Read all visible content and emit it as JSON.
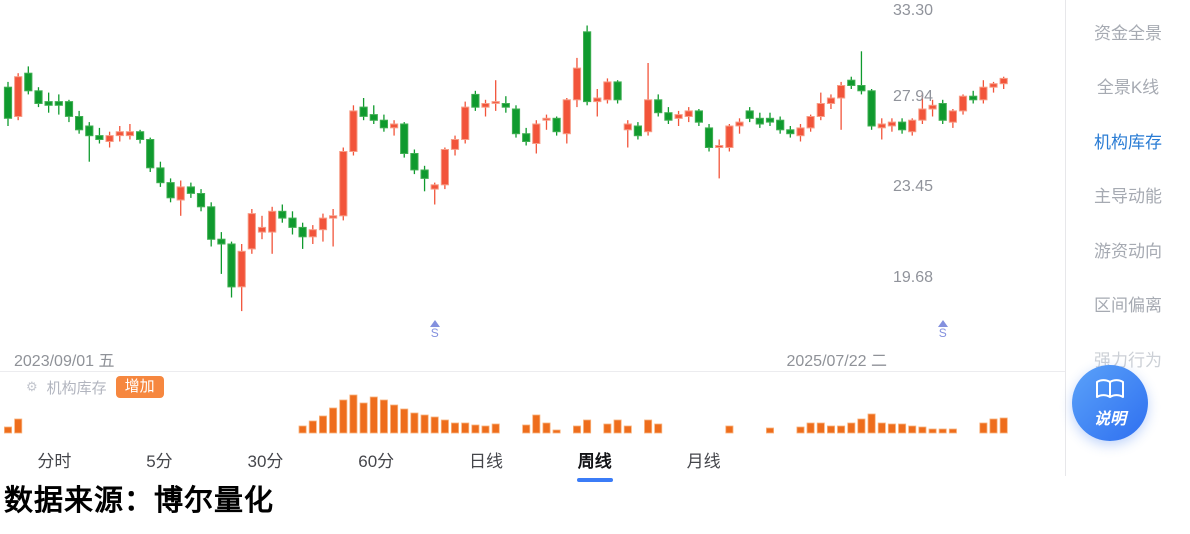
{
  "chart": {
    "price_labels": [
      "33.30",
      "27.94",
      "23.45",
      "19.68"
    ],
    "date_start": "2023/09/01 五",
    "date_end": "2025/07/22 二",
    "signal_markers": [
      {
        "label": "S",
        "index": 42
      },
      {
        "label": "S",
        "index": 92
      }
    ]
  },
  "chart_data": {
    "type": "candlestick",
    "timeframe": "weekly",
    "x_range": [
      "2023/09/01",
      "2025/07/22"
    ],
    "y_axis": {
      "scale": "log",
      "labels": [
        33.3,
        27.94,
        23.45,
        19.68
      ]
    },
    "colors": {
      "up": "#F2543A",
      "up_border": "#F79C86",
      "down": "#0F9A2E",
      "down_border": "#3FAE52",
      "inventory_bar": "#EE6D1C",
      "inventory_bar_border": "#F9B27C"
    },
    "candles_ohlc": [
      [
        28.6,
        28.9,
        26.5,
        26.9
      ],
      [
        27.0,
        29.4,
        26.8,
        29.2
      ],
      [
        29.4,
        29.8,
        28.2,
        28.4
      ],
      [
        28.4,
        28.6,
        27.5,
        27.7
      ],
      [
        27.8,
        28.3,
        27.2,
        27.6
      ],
      [
        27.8,
        28.2,
        27.1,
        27.6
      ],
      [
        27.8,
        27.9,
        26.7,
        27.0
      ],
      [
        27.0,
        27.3,
        26.1,
        26.3
      ],
      [
        26.5,
        26.7,
        24.7,
        26.0
      ],
      [
        26.0,
        26.4,
        25.6,
        25.8
      ],
      [
        25.7,
        26.2,
        25.4,
        26.0
      ],
      [
        26.0,
        26.5,
        25.7,
        26.2
      ],
      [
        26.0,
        26.6,
        25.8,
        26.2
      ],
      [
        26.2,
        26.3,
        25.6,
        25.8
      ],
      [
        25.8,
        25.9,
        24.2,
        24.4
      ],
      [
        24.4,
        24.7,
        23.5,
        23.7
      ],
      [
        23.7,
        23.9,
        22.8,
        23.0
      ],
      [
        22.9,
        23.8,
        22.2,
        23.5
      ],
      [
        23.5,
        23.7,
        23.0,
        23.2
      ],
      [
        23.2,
        23.4,
        22.4,
        22.6
      ],
      [
        22.6,
        22.8,
        20.9,
        21.2
      ],
      [
        21.2,
        21.5,
        19.8,
        21.0
      ],
      [
        21.0,
        21.1,
        18.9,
        19.3
      ],
      [
        19.3,
        21.0,
        18.4,
        20.7
      ],
      [
        20.8,
        22.5,
        20.6,
        22.3
      ],
      [
        21.5,
        22.2,
        21.2,
        21.7
      ],
      [
        21.5,
        22.6,
        20.6,
        22.4
      ],
      [
        22.4,
        22.7,
        21.9,
        22.1
      ],
      [
        22.1,
        22.4,
        21.4,
        21.7
      ],
      [
        21.7,
        21.9,
        20.8,
        21.3
      ],
      [
        21.3,
        21.8,
        21.0,
        21.6
      ],
      [
        21.6,
        22.3,
        21.1,
        22.1
      ],
      [
        22.1,
        22.5,
        20.9,
        22.2
      ],
      [
        22.2,
        25.4,
        22.0,
        25.2
      ],
      [
        25.2,
        27.6,
        25.0,
        27.3
      ],
      [
        27.5,
        28.0,
        26.8,
        27.0
      ],
      [
        27.1,
        27.6,
        26.6,
        26.8
      ],
      [
        26.8,
        27.1,
        26.2,
        26.4
      ],
      [
        26.4,
        26.8,
        26.0,
        26.6
      ],
      [
        26.6,
        26.7,
        24.9,
        25.1
      ],
      [
        25.1,
        25.3,
        24.1,
        24.3
      ],
      [
        24.3,
        24.5,
        23.3,
        23.9
      ],
      [
        23.4,
        23.7,
        22.7,
        23.6
      ],
      [
        23.6,
        25.4,
        23.4,
        25.3
      ],
      [
        25.3,
        26.0,
        25.0,
        25.8
      ],
      [
        25.8,
        27.8,
        25.6,
        27.5
      ],
      [
        28.2,
        28.4,
        27.3,
        27.5
      ],
      [
        27.5,
        27.9,
        27.0,
        27.7
      ],
      [
        27.7,
        29.0,
        27.3,
        27.8
      ],
      [
        27.7,
        28.1,
        27.2,
        27.5
      ],
      [
        27.4,
        27.6,
        25.9,
        26.1
      ],
      [
        26.1,
        26.4,
        25.5,
        25.7
      ],
      [
        25.6,
        26.8,
        25.1,
        26.6
      ],
      [
        26.8,
        27.1,
        26.3,
        26.9
      ],
      [
        26.9,
        27.0,
        26.0,
        26.2
      ],
      [
        26.1,
        28.0,
        25.6,
        27.9
      ],
      [
        27.9,
        30.3,
        27.5,
        29.7
      ],
      [
        31.9,
        32.3,
        27.6,
        27.8
      ],
      [
        27.8,
        28.5,
        27.0,
        28.0
      ],
      [
        27.9,
        29.1,
        27.7,
        28.9
      ],
      [
        28.9,
        29.0,
        27.7,
        27.9
      ],
      [
        26.3,
        26.8,
        25.4,
        26.6
      ],
      [
        26.5,
        26.7,
        25.8,
        26.0
      ],
      [
        26.2,
        30.0,
        26.0,
        27.9
      ],
      [
        27.9,
        28.2,
        27.0,
        27.2
      ],
      [
        27.2,
        27.5,
        26.6,
        26.8
      ],
      [
        26.9,
        27.3,
        26.5,
        27.1
      ],
      [
        27.0,
        27.5,
        26.7,
        27.3
      ],
      [
        27.3,
        27.4,
        26.5,
        26.7
      ],
      [
        26.4,
        26.6,
        25.2,
        25.4
      ],
      [
        25.4,
        25.8,
        23.9,
        25.5
      ],
      [
        25.4,
        26.6,
        25.2,
        26.5
      ],
      [
        26.5,
        26.9,
        26.1,
        26.7
      ],
      [
        27.3,
        27.5,
        26.7,
        26.9
      ],
      [
        26.9,
        27.2,
        26.4,
        26.6
      ],
      [
        26.9,
        27.2,
        26.5,
        26.7
      ],
      [
        26.8,
        27.0,
        26.1,
        26.3
      ],
      [
        26.3,
        26.5,
        25.9,
        26.1
      ],
      [
        26.0,
        26.6,
        25.7,
        26.4
      ],
      [
        26.4,
        27.1,
        26.2,
        27.0
      ],
      [
        27.0,
        28.3,
        26.8,
        27.7
      ],
      [
        27.7,
        28.2,
        27.4,
        28.0
      ],
      [
        28.0,
        28.9,
        26.3,
        28.7
      ],
      [
        29.0,
        29.2,
        28.5,
        28.7
      ],
      [
        28.7,
        30.7,
        28.2,
        28.4
      ],
      [
        28.4,
        28.5,
        26.3,
        26.5
      ],
      [
        26.4,
        26.9,
        25.8,
        26.6
      ],
      [
        26.5,
        26.9,
        26.2,
        26.7
      ],
      [
        26.7,
        26.9,
        26.1,
        26.3
      ],
      [
        26.2,
        26.9,
        26.0,
        26.8
      ],
      [
        26.8,
        28.3,
        26.6,
        27.4
      ],
      [
        27.4,
        27.9,
        27.0,
        27.6
      ],
      [
        27.7,
        27.9,
        26.6,
        26.8
      ],
      [
        26.7,
        27.4,
        26.4,
        27.3
      ],
      [
        27.3,
        28.2,
        27.1,
        28.1
      ],
      [
        28.1,
        28.4,
        27.7,
        27.9
      ],
      [
        27.9,
        29.0,
        27.7,
        28.6
      ],
      [
        28.6,
        28.9,
        28.3,
        28.8
      ],
      [
        28.8,
        29.2,
        28.5,
        29.1
      ]
    ],
    "inventory_bars_rel": [
      6,
      14,
      0,
      0,
      0,
      0,
      0,
      0,
      0,
      0,
      0,
      0,
      0,
      0,
      0,
      0,
      0,
      0,
      0,
      0,
      0,
      0,
      0,
      0,
      0,
      0,
      0,
      0,
      0,
      7,
      12,
      17,
      25,
      33,
      38,
      30,
      36,
      33,
      28,
      24,
      20,
      18,
      16,
      13,
      10,
      10,
      8,
      7,
      9,
      0,
      0,
      8,
      18,
      10,
      3,
      0,
      7,
      13,
      0,
      9,
      13,
      7,
      0,
      13,
      9,
      0,
      0,
      0,
      0,
      0,
      0,
      7,
      0,
      0,
      0,
      5,
      0,
      0,
      6,
      10,
      10,
      7,
      7,
      10,
      14,
      19,
      10,
      9,
      9,
      7,
      6,
      4,
      4,
      4,
      0,
      0,
      10,
      14,
      15
    ]
  },
  "subchart": {
    "gear_icon": "⚙",
    "label": "机构库存",
    "badge": "增加"
  },
  "tabs": [
    {
      "id": "timeshare",
      "label": "分时",
      "active": false
    },
    {
      "id": "5min",
      "label": "5分",
      "active": false
    },
    {
      "id": "30min",
      "label": "30分",
      "active": false
    },
    {
      "id": "60min",
      "label": "60分",
      "active": false
    },
    {
      "id": "daily",
      "label": "日线",
      "active": false
    },
    {
      "id": "weekly",
      "label": "周线",
      "active": true
    },
    {
      "id": "monthly",
      "label": "月线",
      "active": false
    }
  ],
  "sidebar": {
    "items": [
      {
        "id": "fund-panorama",
        "label": "资金全景",
        "active": false,
        "faded": false
      },
      {
        "id": "panorama-kline",
        "label": "全景K线",
        "active": false,
        "faded": false
      },
      {
        "id": "institutional-inventory",
        "label": "机构库存",
        "active": true,
        "faded": false
      },
      {
        "id": "dominant-momentum",
        "label": "主导动能",
        "active": false,
        "faded": false
      },
      {
        "id": "hot-money-trend",
        "label": "游资动向",
        "active": false,
        "faded": false
      },
      {
        "id": "range-deviation",
        "label": "区间偏离",
        "active": false,
        "faded": false
      },
      {
        "id": "strong-behavior",
        "label": "强力行为",
        "active": false,
        "faded": true
      }
    ]
  },
  "help_button": {
    "label": "说明"
  },
  "footer": {
    "source_text": "数据来源：博尔量化"
  }
}
